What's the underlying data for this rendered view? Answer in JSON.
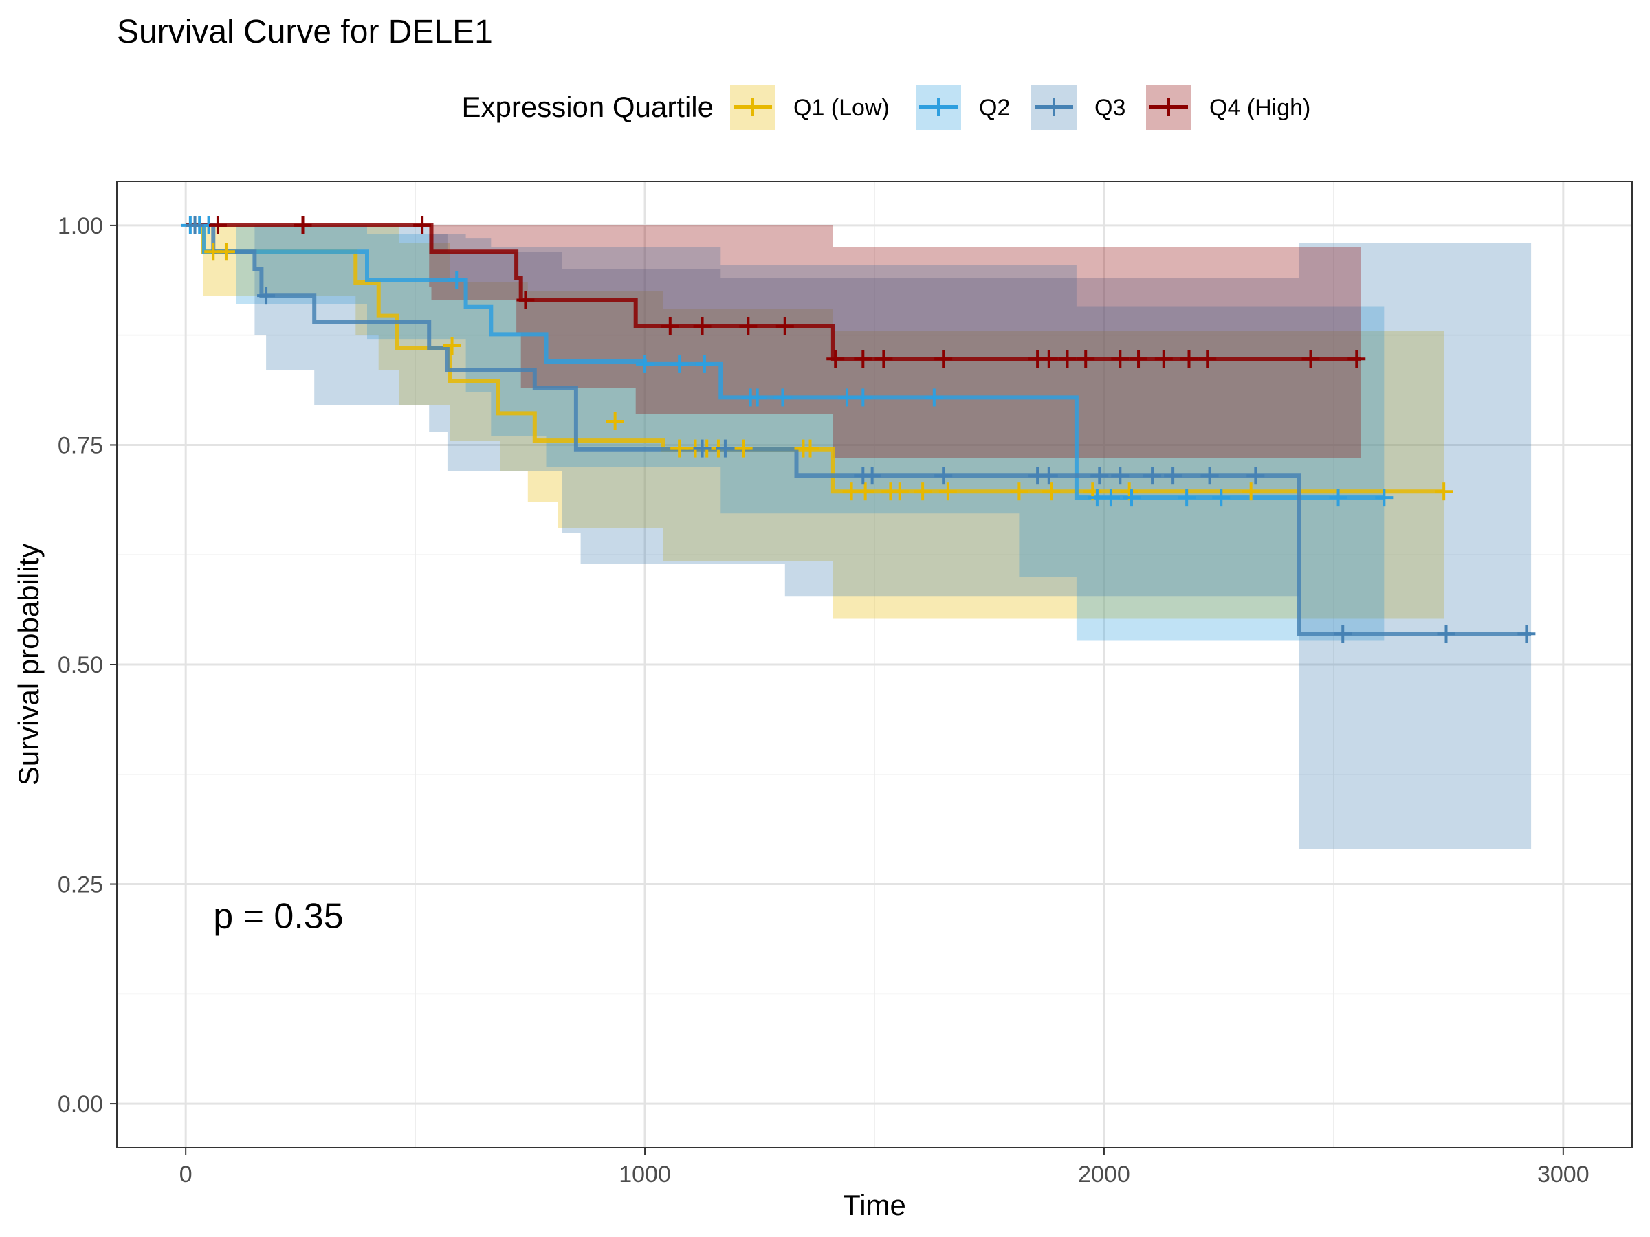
{
  "chart_data": {
    "type": "line",
    "title": "Survival Curve for DELE1",
    "xlabel": "Time",
    "ylabel": "Survival probability",
    "xlim": [
      -150,
      3150
    ],
    "ylim": [
      -0.05,
      1.05
    ],
    "x_ticks": [
      0,
      1000,
      2000,
      3000
    ],
    "x_tick_labels": [
      "0",
      "1000",
      "2000",
      "3000"
    ],
    "y_ticks": [
      0,
      0.25,
      0.5,
      0.75,
      1.0
    ],
    "y_tick_labels": [
      "0.00",
      "0.25",
      "0.50",
      "0.75",
      "1.00"
    ],
    "grid": true,
    "legend": {
      "title": "Expression Quartile",
      "position": "top"
    },
    "annotation": "p = 0.35",
    "annotation_position": {
      "x": 60,
      "y": 0.2
    },
    "series": [
      {
        "name": "Q1 (Low)",
        "color": "#E7B800",
        "steps": [
          [
            0,
            1.0
          ],
          [
            38,
            0.97
          ],
          [
            370,
            0.935
          ],
          [
            420,
            0.897
          ],
          [
            460,
            0.86
          ],
          [
            575,
            0.823
          ],
          [
            680,
            0.786
          ],
          [
            760,
            0.755
          ],
          [
            1040,
            0.745
          ],
          [
            1410,
            0.697
          ],
          [
            2740,
            0.697
          ]
        ],
        "lower": [
          [
            0,
            1.0
          ],
          [
            38,
            0.92
          ],
          [
            370,
            0.875
          ],
          [
            420,
            0.835
          ],
          [
            465,
            0.795
          ],
          [
            575,
            0.755
          ],
          [
            685,
            0.72
          ],
          [
            745,
            0.685
          ],
          [
            810,
            0.655
          ],
          [
            1040,
            0.618
          ],
          [
            1410,
            0.552
          ],
          [
            2740,
            0.552
          ]
        ],
        "upper": [
          [
            0,
            1.0
          ],
          [
            38,
            1.0
          ],
          [
            370,
            1.0
          ],
          [
            420,
            1.0
          ],
          [
            465,
            0.98
          ],
          [
            575,
            0.935
          ],
          [
            685,
            0.935
          ],
          [
            745,
            0.925
          ],
          [
            810,
            0.925
          ],
          [
            1040,
            0.905
          ],
          [
            1410,
            0.88
          ],
          [
            2740,
            0.88
          ]
        ],
        "censored": [
          [
            20,
            1.0
          ],
          [
            60,
            0.97
          ],
          [
            88,
            0.97
          ],
          [
            580,
            0.863
          ],
          [
            935,
            0.777
          ],
          [
            1075,
            0.746
          ],
          [
            1110,
            0.746
          ],
          [
            1135,
            0.746
          ],
          [
            1160,
            0.746
          ],
          [
            1215,
            0.746
          ],
          [
            1345,
            0.746
          ],
          [
            1360,
            0.746
          ],
          [
            1450,
            0.697
          ],
          [
            1480,
            0.697
          ],
          [
            1535,
            0.697
          ],
          [
            1555,
            0.697
          ],
          [
            1605,
            0.697
          ],
          [
            1660,
            0.697
          ],
          [
            1815,
            0.697
          ],
          [
            1885,
            0.697
          ],
          [
            1975,
            0.697
          ],
          [
            2055,
            0.697
          ],
          [
            2320,
            0.697
          ],
          [
            2740,
            0.697
          ]
        ]
      },
      {
        "name": "Q2",
        "color": "#2E9FDF",
        "steps": [
          [
            0,
            1.0
          ],
          [
            40,
            0.97
          ],
          [
            120,
            0.97
          ],
          [
            395,
            0.938
          ],
          [
            610,
            0.907
          ],
          [
            665,
            0.876
          ],
          [
            785,
            0.845
          ],
          [
            1000,
            0.842
          ],
          [
            1165,
            0.804
          ],
          [
            1415,
            0.804
          ],
          [
            1940,
            0.69
          ],
          [
            2610,
            0.69
          ]
        ],
        "lower": [
          [
            0,
            1.0
          ],
          [
            110,
            0.91
          ],
          [
            395,
            0.87
          ],
          [
            610,
            0.81
          ],
          [
            665,
            0.76
          ],
          [
            785,
            0.725
          ],
          [
            1165,
            0.672
          ],
          [
            1815,
            0.6
          ],
          [
            1940,
            0.527
          ],
          [
            2610,
            0.527
          ]
        ],
        "upper": [
          [
            0,
            1.0
          ],
          [
            110,
            1.0
          ],
          [
            395,
            0.99
          ],
          [
            610,
            0.985
          ],
          [
            665,
            0.975
          ],
          [
            785,
            0.975
          ],
          [
            1165,
            0.955
          ],
          [
            1415,
            0.955
          ],
          [
            1940,
            0.908
          ],
          [
            2610,
            0.908
          ]
        ],
        "censored": [
          [
            10,
            1.0
          ],
          [
            30,
            1.0
          ],
          [
            50,
            1.0
          ],
          [
            590,
            0.938
          ],
          [
            1000,
            0.842
          ],
          [
            1075,
            0.842
          ],
          [
            1130,
            0.842
          ],
          [
            1230,
            0.804
          ],
          [
            1245,
            0.804
          ],
          [
            1300,
            0.804
          ],
          [
            1440,
            0.804
          ],
          [
            1475,
            0.804
          ],
          [
            1630,
            0.804
          ],
          [
            1985,
            0.69
          ],
          [
            2015,
            0.69
          ],
          [
            2060,
            0.69
          ],
          [
            2180,
            0.69
          ],
          [
            2255,
            0.69
          ],
          [
            2510,
            0.69
          ],
          [
            2610,
            0.69
          ]
        ]
      },
      {
        "name": "Q3",
        "color": "#4682B4",
        "steps": [
          [
            0,
            1.0
          ],
          [
            60,
            0.97
          ],
          [
            150,
            0.95
          ],
          [
            165,
            0.92
          ],
          [
            280,
            0.89
          ],
          [
            530,
            0.86
          ],
          [
            570,
            0.835
          ],
          [
            680,
            0.835
          ],
          [
            760,
            0.815
          ],
          [
            850,
            0.745
          ],
          [
            1330,
            0.715
          ],
          [
            2420,
            0.715
          ],
          [
            2425,
            0.535
          ],
          [
            2930,
            0.535
          ]
        ],
        "lower": [
          [
            0,
            1.0
          ],
          [
            150,
            0.875
          ],
          [
            175,
            0.835
          ],
          [
            280,
            0.795
          ],
          [
            530,
            0.765
          ],
          [
            570,
            0.72
          ],
          [
            820,
            0.65
          ],
          [
            860,
            0.615
          ],
          [
            1305,
            0.578
          ],
          [
            1390,
            0.578
          ],
          [
            2425,
            0.29
          ],
          [
            2930,
            0.29
          ]
        ],
        "upper": [
          [
            0,
            1.0
          ],
          [
            150,
            1.0
          ],
          [
            530,
            0.99
          ],
          [
            570,
            0.97
          ],
          [
            820,
            0.95
          ],
          [
            1165,
            0.94
          ],
          [
            1390,
            0.94
          ],
          [
            1625,
            0.94
          ],
          [
            2425,
            0.98
          ],
          [
            2930,
            0.98
          ]
        ],
        "censored": [
          [
            20,
            1.0
          ],
          [
            175,
            0.92
          ],
          [
            1125,
            0.746
          ],
          [
            1175,
            0.746
          ],
          [
            1475,
            0.715
          ],
          [
            1495,
            0.715
          ],
          [
            1650,
            0.715
          ],
          [
            1855,
            0.715
          ],
          [
            1880,
            0.715
          ],
          [
            1990,
            0.715
          ],
          [
            2035,
            0.715
          ],
          [
            2105,
            0.715
          ],
          [
            2150,
            0.715
          ],
          [
            2230,
            0.715
          ],
          [
            2330,
            0.715
          ],
          [
            2520,
            0.535
          ],
          [
            2745,
            0.535
          ],
          [
            2920,
            0.535
          ]
        ]
      },
      {
        "name": "Q4 (High)",
        "color": "#8B0000",
        "steps": [
          [
            0,
            1.0
          ],
          [
            530,
            1.0
          ],
          [
            535,
            0.97
          ],
          [
            705,
            0.97
          ],
          [
            720,
            0.94
          ],
          [
            730,
            0.915
          ],
          [
            980,
            0.885
          ],
          [
            1410,
            0.848
          ],
          [
            2560,
            0.848
          ]
        ],
        "lower": [
          [
            0,
            1.0
          ],
          [
            530,
            0.93
          ],
          [
            535,
            0.915
          ],
          [
            720,
            0.878
          ],
          [
            730,
            0.815
          ],
          [
            980,
            0.785
          ],
          [
            1410,
            0.735
          ],
          [
            2560,
            0.735
          ]
        ],
        "upper": [
          [
            0,
            1.0
          ],
          [
            530,
            1.0
          ],
          [
            1410,
            0.975
          ],
          [
            2560,
            0.975
          ]
        ],
        "censored": [
          [
            70,
            1.0
          ],
          [
            255,
            1.0
          ],
          [
            515,
            1.0
          ],
          [
            740,
            0.915
          ],
          [
            1055,
            0.885
          ],
          [
            1125,
            0.885
          ],
          [
            1225,
            0.885
          ],
          [
            1305,
            0.885
          ],
          [
            1415,
            0.848
          ],
          [
            1475,
            0.848
          ],
          [
            1520,
            0.848
          ],
          [
            1650,
            0.848
          ],
          [
            1855,
            0.848
          ],
          [
            1880,
            0.848
          ],
          [
            1920,
            0.848
          ],
          [
            1960,
            0.848
          ],
          [
            2035,
            0.848
          ],
          [
            2075,
            0.848
          ],
          [
            2130,
            0.848
          ],
          [
            2185,
            0.848
          ],
          [
            2225,
            0.848
          ],
          [
            2450,
            0.848
          ],
          [
            2550,
            0.848
          ]
        ]
      }
    ]
  }
}
